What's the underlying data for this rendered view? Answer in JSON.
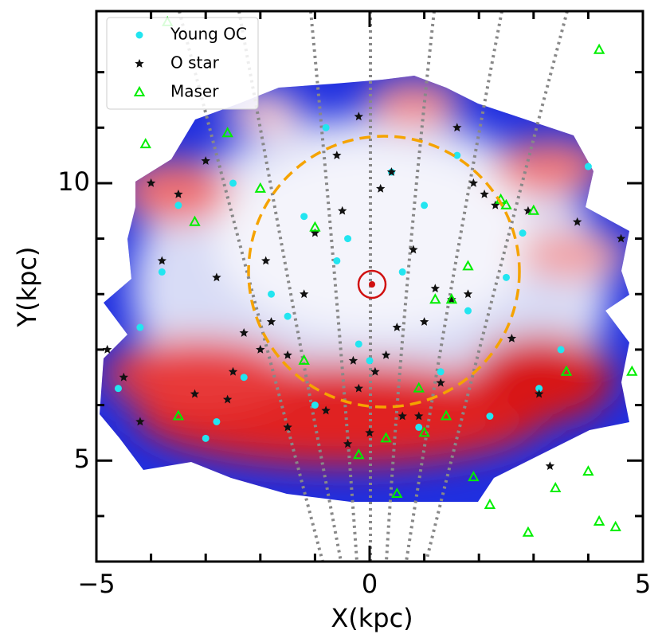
{
  "chart_data": {
    "type": "scatter",
    "xlabel": "X(kpc)",
    "ylabel": "Y(kpc)",
    "xlim": [
      -5,
      5
    ],
    "ylim": [
      3.18,
      13.1
    ],
    "xticks": [
      {
        "value": -5,
        "label": "−5"
      },
      0,
      5
    ],
    "yticks": [
      5,
      10
    ],
    "xminorticks": [
      -4,
      -3,
      -2,
      -1,
      1,
      2,
      3,
      4
    ],
    "yminorticks": [
      4,
      6,
      7,
      8,
      9,
      11,
      12
    ],
    "legend": "upper left",
    "series": [
      {
        "name": "Young OC",
        "marker": "circle",
        "color": "#22e5f0",
        "x": [
          -0.6,
          -1.5,
          -2.3,
          -3.5,
          -2.8,
          0.4,
          1.0,
          -1.0,
          -0.2,
          0.6,
          1.8,
          2.5,
          3.1,
          4.0,
          -4.2,
          -3.0,
          -1.8,
          0.0,
          -0.4,
          1.3,
          2.2,
          -2.5,
          -3.8,
          0.9,
          -1.2,
          3.5,
          -4.6,
          1.6,
          -0.8,
          2.8
        ],
        "y": [
          8.6,
          7.6,
          6.5,
          9.6,
          5.7,
          10.2,
          9.6,
          6.0,
          7.1,
          8.4,
          7.7,
          8.3,
          6.3,
          10.3,
          7.4,
          5.4,
          8.0,
          6.8,
          9.0,
          6.6,
          5.8,
          10.0,
          8.4,
          5.6,
          9.4,
          7.0,
          6.3,
          10.5,
          11.0,
          9.1
        ]
      },
      {
        "name": "O star",
        "marker": "star",
        "color": "#111111",
        "x": [
          -2.3,
          -2.0,
          -1.8,
          -2.5,
          -1.5,
          -1.2,
          -0.3,
          0.1,
          -0.2,
          0.3,
          0.5,
          1.2,
          1.5,
          1.8,
          1.9,
          2.1,
          2.3,
          -3.5,
          -4.0,
          -3.2,
          -4.5,
          -1.0,
          -0.5,
          0.2,
          0.8,
          1.0,
          -2.8,
          -1.5,
          -0.8,
          0.6,
          2.6,
          3.1,
          3.8,
          4.6,
          -4.8,
          -4.2,
          -3.0,
          -0.2,
          0.4,
          1.6,
          -1.9,
          -2.6,
          0.0,
          -0.4,
          0.9,
          -3.8,
          3.3,
          2.9,
          -0.6,
          1.3
        ],
        "y": [
          7.3,
          7.0,
          7.5,
          6.6,
          6.9,
          8.0,
          6.8,
          6.6,
          6.3,
          6.9,
          7.4,
          8.1,
          7.9,
          8.0,
          10.0,
          9.8,
          9.6,
          9.8,
          10.0,
          6.2,
          6.5,
          9.1,
          9.5,
          9.9,
          8.8,
          7.5,
          8.3,
          5.6,
          5.9,
          5.8,
          7.2,
          6.2,
          9.3,
          9.0,
          7.0,
          5.7,
          10.4,
          11.2,
          10.2,
          11.0,
          8.6,
          6.1,
          5.5,
          5.3,
          5.8,
          8.6,
          4.9,
          9.5,
          10.5,
          6.4
        ]
      },
      {
        "name": "Maser",
        "marker": "triangle",
        "color": "#00ee00",
        "x": [
          1.2,
          1.5,
          1.8,
          2.5,
          3.0,
          3.6,
          4.0,
          4.2,
          4.5,
          1.4,
          0.9,
          0.3,
          -0.2,
          -1.2,
          -3.5,
          -2.6,
          -2.0,
          -3.2,
          -4.1,
          4.8,
          1.9,
          2.2,
          2.9,
          3.4,
          -1.0,
          0.5,
          1.0,
          4.2,
          -3.7,
          2.4
        ],
        "y": [
          7.9,
          7.9,
          8.5,
          9.6,
          9.5,
          6.6,
          4.8,
          12.4,
          3.8,
          5.8,
          6.3,
          5.4,
          5.1,
          6.8,
          5.8,
          10.9,
          9.9,
          9.3,
          10.7,
          6.6,
          4.7,
          4.2,
          3.7,
          4.5,
          9.2,
          4.4,
          5.5,
          3.9,
          12.9,
          9.7
        ]
      }
    ]
  }
}
